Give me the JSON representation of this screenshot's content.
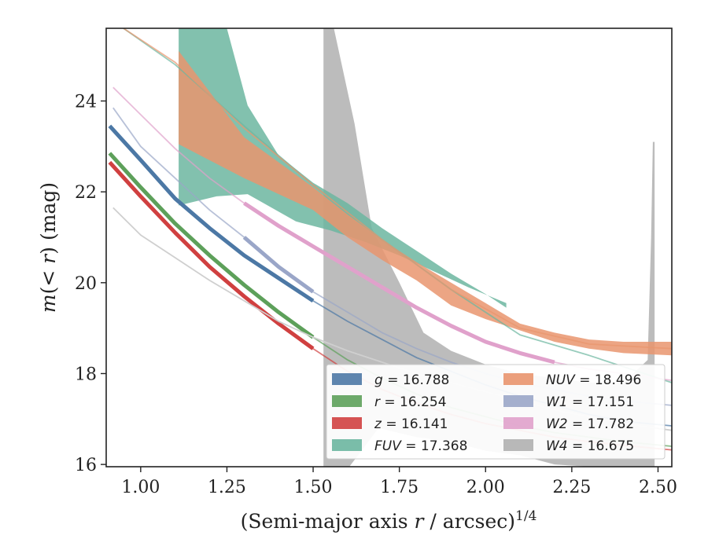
{
  "chart_data": {
    "type": "line",
    "xlabel": "(Semi-major axis r / arcsec)^{1/4}",
    "ylabel": "m(<r) (mag)",
    "xlim": [
      0.9,
      2.54
    ],
    "ylim": [
      25.6,
      15.95
    ],
    "y_inverted": true,
    "grid": false,
    "legend_placement": "lower-right",
    "xticks": [
      {
        "value": 1.0,
        "label": "1.00"
      },
      {
        "value": 1.25,
        "label": "1.25"
      },
      {
        "value": 1.5,
        "label": "1.50"
      },
      {
        "value": 1.75,
        "label": "1.75"
      },
      {
        "value": 2.0,
        "label": "2.00"
      },
      {
        "value": 2.25,
        "label": "2.25"
      },
      {
        "value": 2.5,
        "label": "2.50"
      }
    ],
    "yticks": [
      {
        "value": 16,
        "label": "16"
      },
      {
        "value": 18,
        "label": "18"
      },
      {
        "value": 20,
        "label": "20"
      },
      {
        "value": 22,
        "label": "22"
      },
      {
        "value": 24,
        "label": "24"
      }
    ],
    "series": [
      {
        "name": "W4 = 16.675",
        "legend_label": "W4 = 16.675",
        "band": "W4",
        "mag": "16.675",
        "color": "#b0b0b0",
        "upper": [
          [
            1.53,
            15.9
          ],
          [
            1.6,
            15.9
          ],
          [
            1.69,
            16.8
          ],
          [
            1.8,
            16.6
          ],
          [
            1.9,
            16.5
          ],
          [
            2.0,
            16.3
          ],
          [
            2.1,
            16.2
          ],
          [
            2.2,
            16.0
          ],
          [
            2.3,
            15.95
          ],
          [
            2.49,
            15.9
          ]
        ],
        "lower": [
          [
            1.53,
            25.6
          ],
          [
            1.56,
            25.6
          ],
          [
            1.62,
            23.5
          ],
          [
            1.67,
            21.2
          ],
          [
            1.75,
            20.0
          ],
          [
            1.82,
            18.9
          ],
          [
            1.9,
            18.5
          ],
          [
            2.0,
            18.2
          ],
          [
            2.1,
            18.0
          ],
          [
            2.2,
            17.9
          ],
          [
            2.3,
            17.8
          ],
          [
            2.4,
            17.8
          ],
          [
            2.47,
            18.3
          ],
          [
            2.48,
            21.0
          ],
          [
            2.485,
            23.1
          ],
          [
            2.49,
            23.1
          ]
        ]
      },
      {
        "name": "FUV = 17.368",
        "legend_label": "FUV = 17.368",
        "band": "FUV",
        "mag": "17.368",
        "color": "#6cb6a0",
        "upper": [
          [
            1.11,
            21.7
          ],
          [
            1.22,
            21.9
          ],
          [
            1.31,
            21.95
          ],
          [
            1.45,
            21.35
          ],
          [
            1.55,
            21.15
          ],
          [
            1.65,
            20.9
          ],
          [
            1.75,
            20.6
          ],
          [
            1.85,
            20.25
          ],
          [
            1.95,
            19.9
          ],
          [
            2.06,
            19.55
          ]
        ],
        "lower": [
          [
            1.11,
            25.6
          ],
          [
            1.25,
            25.6
          ],
          [
            1.31,
            23.9
          ],
          [
            1.4,
            22.8
          ],
          [
            1.5,
            22.2
          ],
          [
            1.6,
            21.75
          ],
          [
            1.7,
            21.2
          ],
          [
            1.8,
            20.7
          ],
          [
            1.9,
            20.2
          ],
          [
            2.0,
            19.75
          ],
          [
            2.06,
            19.45
          ]
        ],
        "line": [
          [
            0.95,
            25.6
          ],
          [
            1.1,
            24.8
          ],
          [
            1.3,
            23.45
          ],
          [
            1.5,
            22.15
          ],
          [
            1.7,
            20.95
          ],
          [
            1.9,
            19.85
          ],
          [
            2.1,
            18.85
          ],
          [
            2.3,
            18.4
          ],
          [
            2.54,
            17.8
          ]
        ]
      },
      {
        "name": "NUV = 18.496",
        "legend_label": "NUV = 18.496",
        "band": "NUV",
        "mag": "18.496",
        "color": "#e9956e",
        "upper": [
          [
            1.11,
            23.05
          ],
          [
            1.3,
            22.3
          ],
          [
            1.5,
            21.6
          ],
          [
            1.6,
            21.0
          ],
          [
            1.7,
            20.5
          ],
          [
            1.8,
            20.05
          ],
          [
            1.9,
            19.5
          ],
          [
            2.0,
            19.2
          ],
          [
            2.1,
            18.95
          ],
          [
            2.2,
            18.7
          ],
          [
            2.3,
            18.55
          ],
          [
            2.4,
            18.45
          ],
          [
            2.54,
            18.4
          ]
        ],
        "lower": [
          [
            1.11,
            25.1
          ],
          [
            1.3,
            23.2
          ],
          [
            1.5,
            22.1
          ],
          [
            1.6,
            21.5
          ],
          [
            1.7,
            20.95
          ],
          [
            1.8,
            20.45
          ],
          [
            1.9,
            20.0
          ],
          [
            2.0,
            19.55
          ],
          [
            2.1,
            19.1
          ],
          [
            2.2,
            18.9
          ],
          [
            2.3,
            18.75
          ],
          [
            2.4,
            18.7
          ],
          [
            2.54,
            18.7
          ]
        ],
        "line": [
          [
            0.95,
            25.6
          ],
          [
            1.1,
            24.85
          ],
          [
            1.3,
            23.4
          ],
          [
            1.5,
            22.15
          ],
          [
            1.7,
            20.95
          ],
          [
            1.9,
            19.85
          ],
          [
            2.1,
            19.0
          ],
          [
            2.3,
            18.65
          ],
          [
            2.54,
            18.55
          ]
        ]
      },
      {
        "name": "W2 = 17.782",
        "legend_label": "W2 = 17.782",
        "band": "W2",
        "mag": "17.782",
        "color": "#e0a1cb",
        "line": [
          [
            0.92,
            24.3
          ],
          [
            1.0,
            23.7
          ],
          [
            1.1,
            22.95
          ],
          [
            1.2,
            22.3
          ],
          [
            1.3,
            21.75
          ],
          [
            1.4,
            21.25
          ],
          [
            1.5,
            20.8
          ],
          [
            1.6,
            20.35
          ],
          [
            1.7,
            19.9
          ],
          [
            1.8,
            19.45
          ],
          [
            1.9,
            19.05
          ],
          [
            2.0,
            18.7
          ],
          [
            2.1,
            18.45
          ],
          [
            2.2,
            18.25
          ],
          [
            2.3,
            18.1
          ],
          [
            2.4,
            18.0
          ],
          [
            2.54,
            17.85
          ]
        ],
        "bold_range": [
          1.29,
          2.29
        ]
      },
      {
        "name": "W1 = 17.151",
        "legend_label": "W1 = 17.151",
        "band": "W1",
        "mag": "17.151",
        "color": "#9aa6c8",
        "line": [
          [
            0.92,
            23.85
          ],
          [
            1.0,
            23.0
          ],
          [
            1.1,
            22.3
          ],
          [
            1.2,
            21.6
          ],
          [
            1.3,
            21.0
          ],
          [
            1.4,
            20.35
          ],
          [
            1.5,
            19.8
          ],
          [
            1.6,
            19.35
          ],
          [
            1.7,
            18.9
          ],
          [
            1.8,
            18.55
          ],
          [
            1.9,
            18.25
          ],
          [
            2.0,
            18.0
          ],
          [
            2.1,
            17.8
          ],
          [
            2.2,
            17.65
          ],
          [
            2.3,
            17.5
          ],
          [
            2.4,
            17.4
          ],
          [
            2.54,
            17.3
          ]
        ],
        "bold_range": [
          1.29,
          1.56
        ]
      },
      {
        "name": "g = 16.788",
        "legend_label": "g = 16.788",
        "band": "g",
        "mag": "16.788",
        "color": "#4c78a5",
        "line": [
          [
            0.91,
            23.45
          ],
          [
            1.0,
            22.7
          ],
          [
            1.1,
            21.85
          ],
          [
            1.2,
            21.2
          ],
          [
            1.3,
            20.6
          ],
          [
            1.4,
            20.1
          ],
          [
            1.5,
            19.6
          ],
          [
            1.6,
            19.15
          ],
          [
            1.7,
            18.75
          ],
          [
            1.8,
            18.35
          ],
          [
            1.9,
            18.05
          ],
          [
            2.0,
            17.75
          ],
          [
            2.1,
            17.5
          ],
          [
            2.2,
            17.3
          ],
          [
            2.3,
            17.1
          ],
          [
            2.4,
            16.95
          ],
          [
            2.54,
            16.85
          ]
        ],
        "bold_range": [
          0.91,
          1.53
        ]
      },
      {
        "name": "r = 16.254",
        "legend_label": "r = 16.254",
        "band": "r",
        "mag": "16.254",
        "color": "#5da05a",
        "line": [
          [
            0.91,
            22.85
          ],
          [
            1.0,
            22.1
          ],
          [
            1.1,
            21.3
          ],
          [
            1.2,
            20.6
          ],
          [
            1.3,
            19.95
          ],
          [
            1.4,
            19.35
          ],
          [
            1.5,
            18.8
          ],
          [
            1.6,
            18.3
          ],
          [
            1.7,
            17.9
          ],
          [
            1.8,
            17.55
          ],
          [
            1.9,
            17.25
          ],
          [
            2.0,
            17.05
          ],
          [
            2.1,
            16.85
          ],
          [
            2.2,
            16.7
          ],
          [
            2.3,
            16.6
          ],
          [
            2.4,
            16.5
          ],
          [
            2.54,
            16.4
          ]
        ],
        "bold_range": [
          0.91,
          1.53
        ]
      },
      {
        "name": "z = 16.141",
        "legend_label": "z = 16.141",
        "band": "z",
        "mag": "16.141",
        "color": "#d04040",
        "line": [
          [
            0.91,
            22.65
          ],
          [
            1.0,
            21.9
          ],
          [
            1.1,
            21.1
          ],
          [
            1.2,
            20.35
          ],
          [
            1.3,
            19.7
          ],
          [
            1.4,
            19.1
          ],
          [
            1.5,
            18.55
          ],
          [
            1.6,
            18.05
          ],
          [
            1.7,
            17.65
          ],
          [
            1.8,
            17.35
          ],
          [
            1.9,
            17.1
          ],
          [
            2.0,
            16.9
          ],
          [
            2.1,
            16.75
          ],
          [
            2.2,
            16.6
          ],
          [
            2.3,
            16.5
          ],
          [
            2.4,
            16.42
          ],
          [
            2.54,
            16.32
          ]
        ],
        "bold_range": [
          0.91,
          1.53
        ]
      },
      {
        "name": "faint-gray-curve",
        "color": "#cfcfcf",
        "line": [
          [
            0.92,
            21.65
          ],
          [
            1.0,
            21.05
          ],
          [
            1.1,
            20.55
          ],
          [
            1.2,
            20.05
          ],
          [
            1.3,
            19.6
          ],
          [
            1.4,
            19.15
          ],
          [
            1.5,
            18.8
          ],
          [
            1.6,
            18.5
          ],
          [
            1.7,
            18.25
          ],
          [
            1.8,
            18.0
          ],
          [
            1.9,
            17.8
          ],
          [
            2.0,
            17.6
          ],
          [
            2.1,
            17.4
          ],
          [
            2.2,
            17.2
          ],
          [
            2.3,
            17.05
          ],
          [
            2.4,
            16.9
          ],
          [
            2.54,
            16.75
          ]
        ]
      }
    ],
    "legend": {
      "columns": [
        [
          {
            "band": "g",
            "mag": "16.788",
            "color": "#4c78a5"
          },
          {
            "band": "r",
            "mag": "16.254",
            "color": "#5da05a"
          },
          {
            "band": "z",
            "mag": "16.141",
            "color": "#d04040"
          },
          {
            "band": "FUV",
            "mag": "17.368",
            "color": "#6cb6a0"
          }
        ],
        [
          {
            "band": "NUV",
            "mag": "18.496",
            "color": "#e9956e"
          },
          {
            "band": "W1",
            "mag": "17.151",
            "color": "#9aa6c8"
          },
          {
            "band": "W2",
            "mag": "17.782",
            "color": "#e0a1cb"
          },
          {
            "band": "W4",
            "mag": "16.675",
            "color": "#b0b0b0"
          }
        ]
      ]
    }
  }
}
